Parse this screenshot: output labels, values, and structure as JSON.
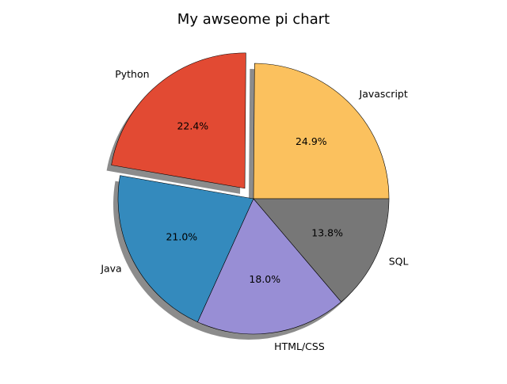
{
  "chart_data": {
    "type": "pie",
    "title": "My awseome pi chart",
    "categories": [
      "Javascript",
      "Python",
      "Java",
      "HTML/CSS",
      "SQL"
    ],
    "values": [
      24.9,
      22.4,
      21.0,
      18.0,
      13.8
    ],
    "percent_labels": [
      "24.9%",
      "22.4%",
      "21.0%",
      "18.0%",
      "13.8%"
    ],
    "colors": [
      "#FBC15E",
      "#E24A33",
      "#348ABD",
      "#988ED5",
      "#777777"
    ],
    "explode": [
      0,
      0.1,
      0,
      0,
      0
    ],
    "start_angle_deg": 0,
    "direction": "counterclockwise",
    "shadow": true,
    "edge_color": "#000000",
    "autopct": "%1.1f%%"
  }
}
